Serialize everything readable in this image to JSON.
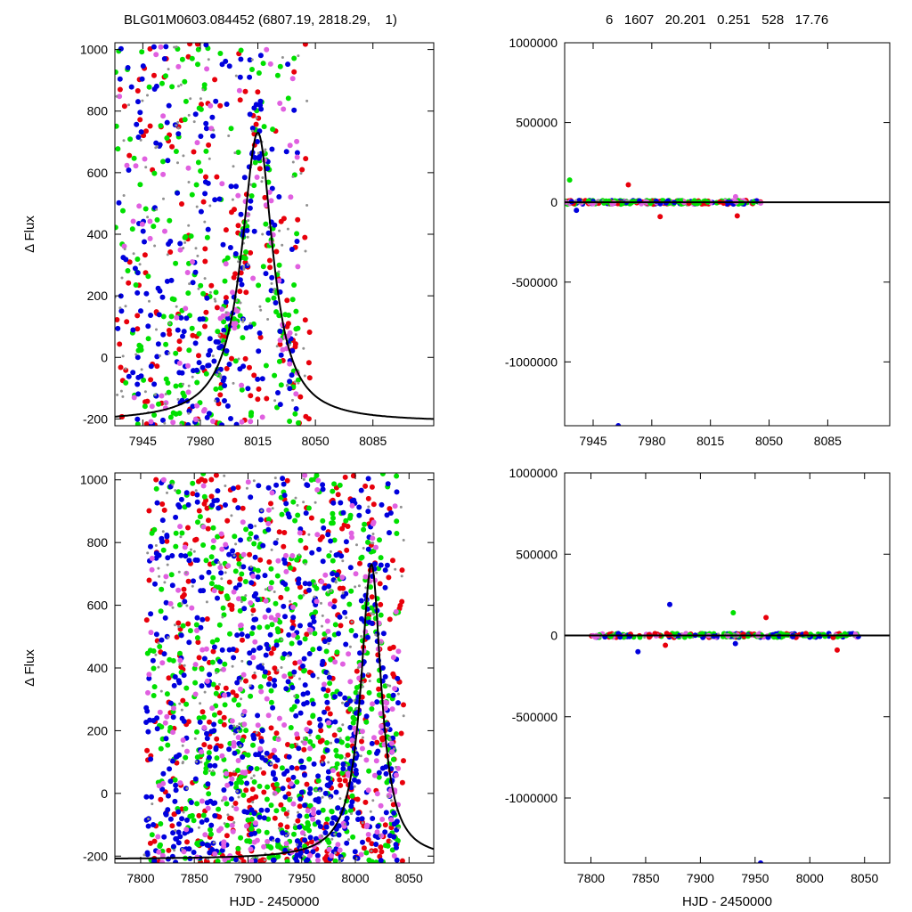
{
  "header": {
    "left": "BLG01M0603.084452 (6807.19, 2818.29,    1)",
    "right": "6   1607   20.201   0.251   528   17.76"
  },
  "colors": {
    "red": "#e8000b",
    "green": "#00e000",
    "blue": "#0000dd",
    "magenta": "#e060e0",
    "gray": "#909090",
    "model": "#000000"
  },
  "model": {
    "t0": 8015,
    "amplitude": 940,
    "baseline": -210,
    "rise_tau": 12,
    "fall_tau": 11
  },
  "chart_data": [
    {
      "id": "top-left",
      "type": "scatter",
      "title": "",
      "xlabel": "",
      "ylabel": "Δ Flux",
      "xlim": [
        7928,
        8122
      ],
      "ylim": [
        -222,
        1022
      ],
      "xticks": [
        7945,
        7980,
        8015,
        8050,
        8085
      ],
      "yticks": [
        -200,
        0,
        200,
        400,
        600,
        800,
        1000
      ],
      "grid": false,
      "series": [
        {
          "color": "red",
          "n": 170,
          "x_range": [
            7928,
            8047
          ],
          "y_range": [
            -220,
            1020
          ]
        },
        {
          "color": "green",
          "n": 220,
          "x_range": [
            7928,
            8040
          ],
          "y_range": [
            -220,
            1020
          ]
        },
        {
          "color": "blue",
          "n": 230,
          "x_range": [
            7928,
            8040
          ],
          "y_range": [
            -220,
            1020
          ]
        },
        {
          "color": "magenta",
          "n": 90,
          "x_range": [
            7928,
            8040
          ],
          "y_range": [
            -220,
            1020
          ]
        },
        {
          "color": "gray",
          "n": 160,
          "x_range": [
            7928,
            8045
          ],
          "y_range": [
            -220,
            1020
          ]
        }
      ],
      "model_curve": true
    },
    {
      "id": "top-right",
      "type": "scatter",
      "title": "",
      "xlabel": "",
      "ylabel": "",
      "xlim": [
        7928,
        8122
      ],
      "ylim": [
        -1400000,
        1000000
      ],
      "xticks": [
        7945,
        7980,
        8015,
        8050,
        8085
      ],
      "yticks": [
        -1000000,
        -500000,
        0,
        500000,
        1000000
      ],
      "grid": false,
      "band": {
        "x_range": [
          7928,
          8045
        ],
        "half_width": 12000
      },
      "outliers": [
        {
          "x": 7931,
          "y": 140000,
          "color": "green"
        },
        {
          "x": 7966,
          "y": 110000,
          "color": "red"
        },
        {
          "x": 7935,
          "y": -50000,
          "color": "blue"
        },
        {
          "x": 8031,
          "y": -85000,
          "color": "red"
        },
        {
          "x": 7985,
          "y": -90000,
          "color": "red"
        },
        {
          "x": 8030,
          "y": 35000,
          "color": "magenta"
        },
        {
          "x": 7960,
          "y": -1400000,
          "color": "blue"
        }
      ],
      "model_curve": true
    },
    {
      "id": "bottom-left",
      "type": "scatter",
      "title": "",
      "xlabel": "HJD - 2450000",
      "ylabel": "Δ Flux",
      "xlim": [
        7776,
        8073
      ],
      "ylim": [
        -222,
        1022
      ],
      "xticks": [
        7800,
        7850,
        7900,
        7950,
        8000,
        8050
      ],
      "yticks": [
        -200,
        0,
        200,
        400,
        600,
        800,
        1000
      ],
      "grid": false,
      "series": [
        {
          "color": "red",
          "n": 420,
          "x_range": [
            7805,
            8045
          ],
          "y_range": [
            -220,
            1020
          ]
        },
        {
          "color": "green",
          "n": 520,
          "x_range": [
            7805,
            8040
          ],
          "y_range": [
            -220,
            1020
          ]
        },
        {
          "color": "blue",
          "n": 620,
          "x_range": [
            7805,
            8040
          ],
          "y_range": [
            -220,
            1020
          ]
        },
        {
          "color": "magenta",
          "n": 240,
          "x_range": [
            7805,
            8045
          ],
          "y_range": [
            -220,
            1020
          ]
        },
        {
          "color": "gray",
          "n": 260,
          "x_range": [
            7800,
            8045
          ],
          "y_range": [
            -220,
            1020
          ]
        }
      ],
      "model_curve": true
    },
    {
      "id": "bottom-right",
      "type": "scatter",
      "title": "",
      "xlabel": "HJD - 2450000",
      "ylabel": "",
      "xlim": [
        7776,
        8073
      ],
      "ylim": [
        -1400000,
        1000000
      ],
      "xticks": [
        7800,
        7850,
        7900,
        7950,
        8000,
        8050
      ],
      "yticks": [
        -1000000,
        -500000,
        0,
        500000,
        1000000
      ],
      "grid": false,
      "band": {
        "x_range": [
          7800,
          8045
        ],
        "half_width": 12000
      },
      "outliers": [
        {
          "x": 7872,
          "y": 190000,
          "color": "blue"
        },
        {
          "x": 7930,
          "y": 140000,
          "color": "green"
        },
        {
          "x": 7960,
          "y": 110000,
          "color": "red"
        },
        {
          "x": 7843,
          "y": -100000,
          "color": "blue"
        },
        {
          "x": 7868,
          "y": -60000,
          "color": "red"
        },
        {
          "x": 8025,
          "y": -90000,
          "color": "red"
        },
        {
          "x": 7932,
          "y": -50000,
          "color": "blue"
        },
        {
          "x": 7955,
          "y": -1400000,
          "color": "blue"
        }
      ],
      "model_curve": true
    }
  ]
}
